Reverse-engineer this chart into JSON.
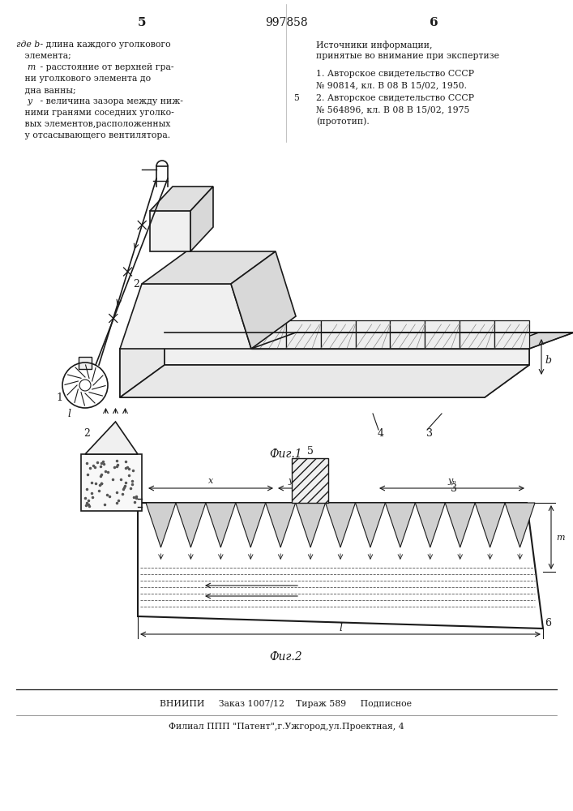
{
  "page_number_left": "5",
  "page_number_center": "997858",
  "page_number_right": "6",
  "fig1_label": "Фиг.1",
  "fig2_label": "Фиг.2",
  "bottom_line1": "ВНИИПИ     Заказ 1007/12    Тираж 589     Подписное",
  "bottom_line2": "Филиал ППП \"Патент\",г.Ужгород,ул.Проектная, 4",
  "bg_color": "#ffffff"
}
